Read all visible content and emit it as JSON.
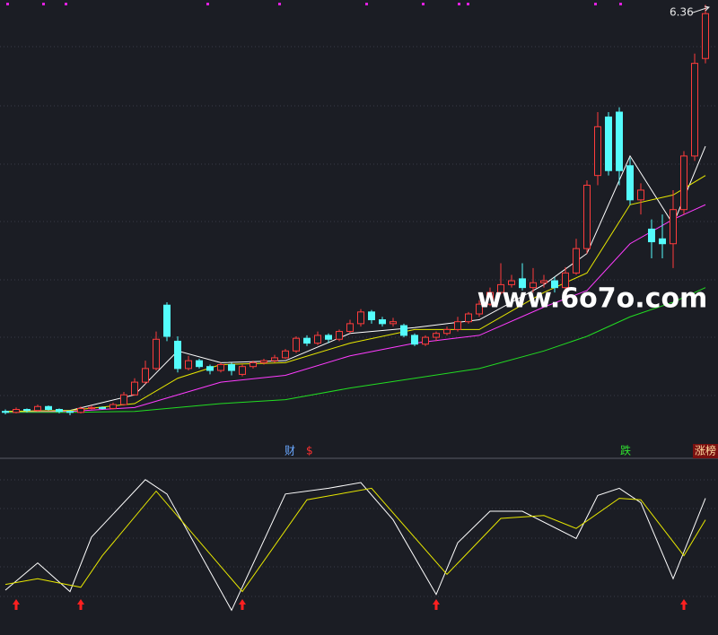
{
  "chart_data": [
    {
      "type": "candlestick",
      "max_label": "6.36",
      "watermark": "www.6o7o.com",
      "markers": [
        "财",
        "$",
        "跌",
        "涨榜"
      ],
      "ylim": [
        1.9,
        6.5
      ],
      "up_color": "#ff3c3c",
      "down_color": "#54fcfc",
      "open": [
        2.28,
        2.27,
        2.3,
        2.29,
        2.33,
        2.3,
        2.28,
        2.27,
        2.31,
        2.32,
        2.31,
        2.35,
        2.45,
        2.58,
        2.72,
        3.37,
        3.0,
        2.72,
        2.8,
        2.74,
        2.7,
        2.76,
        2.66,
        2.74,
        2.78,
        2.8,
        2.83,
        2.9,
        3.03,
        2.98,
        3.06,
        3.02,
        3.1,
        3.18,
        3.3,
        3.22,
        3.18,
        3.16,
        3.06,
        2.97,
        3.04,
        3.08,
        3.12,
        3.2,
        3.28,
        3.38,
        3.5,
        3.58,
        3.64,
        3.55,
        3.6,
        3.62,
        3.55,
        3.7,
        3.95,
        4.7,
        5.3,
        5.35,
        4.8,
        4.45,
        4.15,
        4.05,
        4.0,
        4.35,
        4.9,
        5.9
      ],
      "close": [
        2.27,
        2.3,
        2.29,
        2.33,
        2.3,
        2.28,
        2.27,
        2.31,
        2.32,
        2.31,
        2.35,
        2.45,
        2.58,
        2.72,
        3.02,
        3.05,
        2.72,
        2.8,
        2.74,
        2.7,
        2.76,
        2.7,
        2.74,
        2.78,
        2.8,
        2.83,
        2.9,
        3.03,
        2.98,
        3.06,
        3.02,
        3.1,
        3.18,
        3.3,
        3.22,
        3.18,
        3.2,
        3.06,
        2.97,
        3.04,
        3.08,
        3.12,
        3.2,
        3.28,
        3.38,
        3.5,
        3.58,
        3.62,
        3.55,
        3.6,
        3.62,
        3.55,
        3.7,
        3.95,
        4.6,
        5.2,
        4.75,
        4.75,
        4.45,
        4.55,
        4.02,
        4.0,
        4.35,
        4.9,
        5.85,
        6.36
      ],
      "high": [
        2.3,
        2.32,
        2.31,
        2.35,
        2.34,
        2.31,
        2.29,
        2.33,
        2.34,
        2.33,
        2.37,
        2.48,
        2.62,
        2.8,
        3.1,
        3.4,
        3.05,
        2.85,
        2.82,
        2.76,
        2.78,
        2.78,
        2.76,
        2.8,
        2.82,
        2.86,
        2.92,
        3.05,
        3.06,
        3.1,
        3.08,
        3.12,
        3.22,
        3.33,
        3.32,
        3.25,
        3.24,
        3.18,
        3.08,
        3.06,
        3.1,
        3.15,
        3.25,
        3.3,
        3.42,
        3.55,
        3.8,
        3.68,
        3.8,
        3.75,
        3.68,
        3.66,
        3.76,
        4.05,
        4.65,
        5.35,
        5.35,
        5.4,
        4.88,
        4.62,
        4.25,
        4.3,
        4.55,
        4.95,
        5.95,
        6.45
      ],
      "low": [
        2.25,
        2.26,
        2.27,
        2.28,
        2.29,
        2.26,
        2.24,
        2.26,
        2.3,
        2.3,
        2.3,
        2.34,
        2.44,
        2.56,
        2.7,
        3.0,
        2.68,
        2.7,
        2.72,
        2.66,
        2.68,
        2.65,
        2.64,
        2.72,
        2.76,
        2.78,
        2.82,
        2.88,
        2.95,
        2.96,
        2.98,
        3.0,
        3.08,
        3.15,
        3.18,
        3.15,
        3.15,
        3.04,
        2.95,
        2.95,
        3.0,
        3.06,
        3.1,
        3.18,
        3.25,
        3.36,
        3.48,
        3.55,
        3.52,
        3.5,
        3.55,
        3.5,
        3.52,
        3.68,
        3.9,
        4.6,
        4.7,
        4.6,
        4.4,
        4.3,
        3.85,
        3.85,
        3.75,
        4.3,
        4.85,
        5.85
      ],
      "lines": [
        {
          "color": "#ffffff",
          "x": [
            0,
            6,
            12,
            16,
            20,
            26,
            32,
            38,
            44,
            50,
            54,
            58,
            62,
            65
          ],
          "values": [
            2.28,
            2.29,
            2.45,
            2.9,
            2.78,
            2.8,
            3.08,
            3.14,
            3.22,
            3.58,
            3.9,
            4.9,
            4.2,
            5.0
          ]
        },
        {
          "color": "#e8e800",
          "x": [
            0,
            6,
            12,
            16,
            20,
            26,
            32,
            38,
            44,
            50,
            54,
            58,
            62,
            65
          ],
          "values": [
            2.28,
            2.29,
            2.36,
            2.62,
            2.76,
            2.78,
            2.98,
            3.12,
            3.12,
            3.5,
            3.7,
            4.4,
            4.5,
            4.7
          ]
        },
        {
          "color": "#ff3cff",
          "x": [
            0,
            6,
            12,
            16,
            20,
            26,
            32,
            38,
            44,
            50,
            54,
            58,
            62,
            65
          ],
          "values": [
            2.27,
            2.28,
            2.32,
            2.45,
            2.58,
            2.65,
            2.85,
            2.98,
            3.06,
            3.35,
            3.52,
            4.0,
            4.25,
            4.4
          ]
        },
        {
          "color": "#22dd22",
          "x": [
            0,
            6,
            12,
            16,
            20,
            26,
            32,
            38,
            44,
            50,
            54,
            58,
            62,
            65
          ],
          "values": [
            2.27,
            2.27,
            2.28,
            2.32,
            2.36,
            2.4,
            2.52,
            2.62,
            2.72,
            2.9,
            3.05,
            3.25,
            3.4,
            3.55
          ]
        }
      ]
    },
    {
      "type": "line",
      "ylim": [
        0,
        100
      ],
      "series": [
        {
          "color": "#ffffff",
          "x": [
            0,
            3,
            6,
            8,
            13,
            15,
            21,
            26,
            30,
            33,
            36,
            40,
            42,
            45,
            48,
            53,
            55,
            57,
            59,
            62,
            65
          ],
          "values": [
            20,
            39,
            19,
            57,
            97,
            87,
            6,
            87,
            91,
            95,
            69,
            17,
            53,
            75,
            75,
            56,
            86,
            91,
            81,
            28,
            84
          ]
        },
        {
          "color": "#e8e800",
          "x": [
            0,
            3,
            7,
            9,
            14,
            22,
            28,
            34,
            41,
            46,
            50,
            53,
            57,
            59,
            63,
            65
          ],
          "values": [
            24,
            28,
            22,
            44,
            89,
            19,
            83,
            91,
            31,
            70,
            72,
            63,
            84,
            83,
            44,
            69
          ]
        }
      ],
      "signals": [
        1,
        7,
        22,
        40,
        63
      ],
      "signal_color": "#ff2020"
    }
  ]
}
